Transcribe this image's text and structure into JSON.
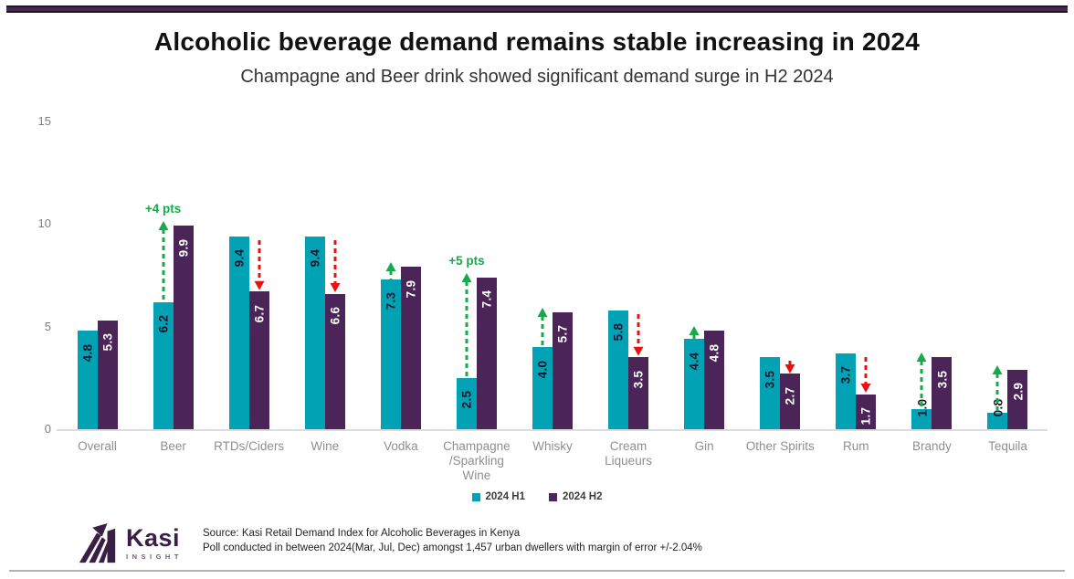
{
  "header": {
    "title": "Alcoholic beverage demand remains stable increasing in 2024",
    "subtitle": "Champagne and Beer drink showed significant demand surge in H2 2024"
  },
  "chart_data": {
    "type": "bar",
    "title": "Alcoholic beverage demand remains stable increasing in 2024",
    "subtitle": "Champagne and Beer drink showed significant demand surge in H2 2024",
    "categories": [
      "Overall",
      "Beer",
      "RTDs/Ciders",
      "Wine",
      "Vodka",
      "Champagne\n/Sparkling\nWine",
      "Whisky",
      "Cream\nLiqueurs",
      "Gin",
      "Other Spirits",
      "Rum",
      "Brandy",
      "Tequila"
    ],
    "series": [
      {
        "name": "2024 H1",
        "color": "#00A2B3",
        "values": [
          4.8,
          6.2,
          9.4,
          9.4,
          7.3,
          2.5,
          4.0,
          5.8,
          4.4,
          3.5,
          3.7,
          1.0,
          0.8
        ]
      },
      {
        "name": "2024 H2",
        "color": "#4B2557",
        "values": [
          5.3,
          9.9,
          6.7,
          6.6,
          7.9,
          7.4,
          5.7,
          3.5,
          4.8,
          2.7,
          1.7,
          3.5,
          2.9
        ]
      }
    ],
    "ylim": [
      0,
      15
    ],
    "yticks": [
      0,
      5,
      10,
      15
    ],
    "grid": false,
    "legend_position": "bottom",
    "arrows": [
      {
        "category_index": 1,
        "category": "Beer",
        "direction": "up",
        "color": "green",
        "label": "+4 pts"
      },
      {
        "category_index": 2,
        "category": "RTDs/Ciders",
        "direction": "down",
        "color": "red"
      },
      {
        "category_index": 3,
        "category": "Wine",
        "direction": "down",
        "color": "red"
      },
      {
        "category_index": 4,
        "category": "Vodka",
        "direction": "up",
        "color": "green"
      },
      {
        "category_index": 5,
        "category": "Champagne/Sparkling Wine",
        "direction": "up",
        "color": "green",
        "label": "+5 pts"
      },
      {
        "category_index": 6,
        "category": "Whisky",
        "direction": "up",
        "color": "green"
      },
      {
        "category_index": 7,
        "category": "Cream Liqueurs",
        "direction": "down",
        "color": "red"
      },
      {
        "category_index": 8,
        "category": "Gin",
        "direction": "up",
        "color": "green"
      },
      {
        "category_index": 9,
        "category": "Other Spirits",
        "direction": "down",
        "color": "red"
      },
      {
        "category_index": 10,
        "category": "Rum",
        "direction": "down",
        "color": "red"
      },
      {
        "category_index": 11,
        "category": "Brandy",
        "direction": "up",
        "color": "green"
      },
      {
        "category_index": 12,
        "category": "Tequila",
        "direction": "up",
        "color": "green"
      }
    ]
  },
  "colors": {
    "h1_teal": "#00A2B3",
    "h2_purple": "#4B2557",
    "arrow_green": "#17A94A",
    "arrow_red": "#EA1010",
    "label_on_teal": "#23152F",
    "label_on_purple": "#FFFFFF",
    "axis_text": "#7D7D7D",
    "category_text": "#8F8F8F",
    "banner_purple": "#4B2556"
  },
  "legend": {
    "h1_label": "2024 H1",
    "h2_label": "2024 H2"
  },
  "footer": {
    "logo_name": "Kasi",
    "logo_subtext": "INSIGHT",
    "source_line1": "Source: Kasi Retail Demand Index for Alcoholic Beverages in Kenya",
    "source_line2": "Poll conducted in between 2024(Mar, Jul, Dec) amongst 1,457 urban dwellers with margin of error +/-2.04%"
  }
}
